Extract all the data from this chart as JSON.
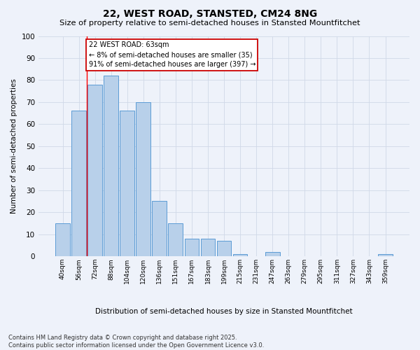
{
  "title": "22, WEST ROAD, STANSTED, CM24 8NG",
  "subtitle": "Size of property relative to semi-detached houses in Stansted Mountfitchet",
  "xlabel": "Distribution of semi-detached houses by size in Stansted Mountfitchet",
  "ylabel": "Number of semi-detached properties",
  "categories": [
    "40sqm",
    "56sqm",
    "72sqm",
    "88sqm",
    "104sqm",
    "120sqm",
    "136sqm",
    "151sqm",
    "167sqm",
    "183sqm",
    "199sqm",
    "215sqm",
    "231sqm",
    "247sqm",
    "263sqm",
    "279sqm",
    "295sqm",
    "311sqm",
    "327sqm",
    "343sqm",
    "359sqm"
  ],
  "values": [
    15,
    66,
    78,
    82,
    66,
    70,
    25,
    15,
    8,
    8,
    7,
    1,
    0,
    2,
    0,
    0,
    0,
    0,
    0,
    0,
    1
  ],
  "bar_color": "#b8d0ea",
  "bar_edge_color": "#5b9bd5",
  "red_line_x": 1.5,
  "annotation_title": "22 WEST ROAD: 63sqm",
  "annotation_line1": "← 8% of semi-detached houses are smaller (35)",
  "annotation_line2": "91% of semi-detached houses are larger (397) →",
  "annotation_box_color": "#ffffff",
  "annotation_box_edge": "#cc0000",
  "ylim": [
    0,
    100
  ],
  "grid_color": "#d0d8e8",
  "background_color": "#eef2fa",
  "footer": "Contains HM Land Registry data © Crown copyright and database right 2025.\nContains public sector information licensed under the Open Government Licence v3.0."
}
